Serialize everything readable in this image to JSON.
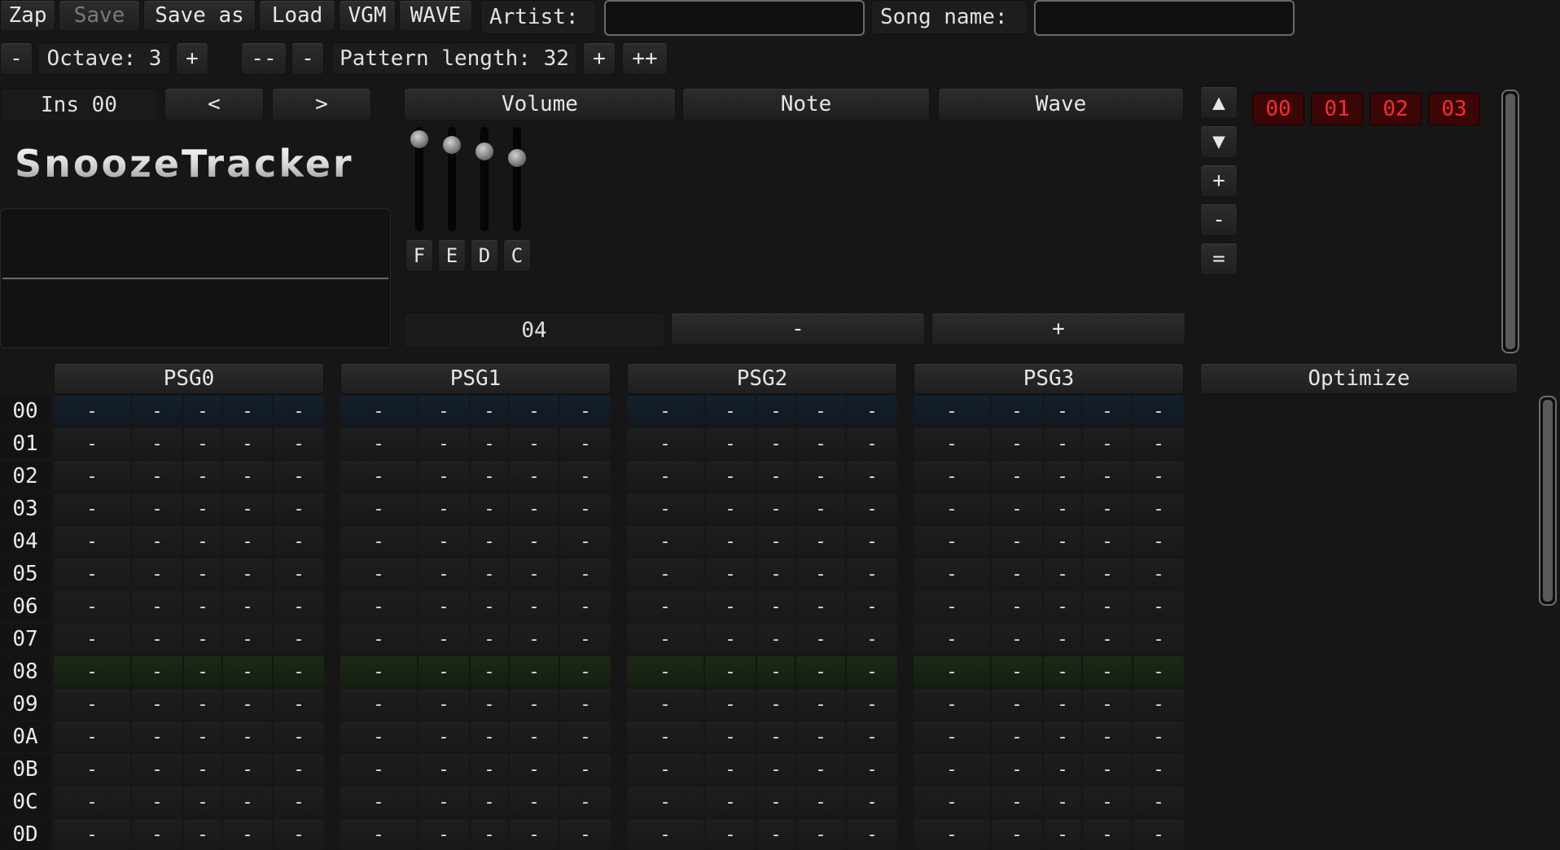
{
  "toolbar": {
    "zap": "Zap",
    "save": "Save",
    "save_as": "Save as",
    "load": "Load",
    "vgm": "VGM",
    "wave": "WAVE",
    "artist_label": "Artist:",
    "artist_value": "",
    "song_label": "Song name:",
    "song_value": ""
  },
  "row2": {
    "octave_minus": "-",
    "octave_label": "Octave: 3",
    "octave_plus": "+",
    "len_dminus": "--",
    "len_minus": "-",
    "pattern_length_label": "Pattern length: 32",
    "len_plus": "+",
    "len_dplus": "++"
  },
  "instrument": {
    "label": "Ins 00",
    "prev": "<",
    "next": ">"
  },
  "tabs": {
    "volume": "Volume",
    "note": "Note",
    "wave": "Wave"
  },
  "logo": "SnoozeTracker",
  "sliders": [
    {
      "label": "F",
      "level": 0.94
    },
    {
      "label": "E",
      "level": 0.88
    },
    {
      "label": "D",
      "level": 0.82
    },
    {
      "label": "C",
      "level": 0.76
    }
  ],
  "envelope": {
    "value": "04",
    "minus": "-",
    "plus": "+"
  },
  "order_controls": {
    "up": "▲",
    "down": "▼",
    "add": "+",
    "remove": "-",
    "dup": "="
  },
  "order_list": [
    "00",
    "01",
    "02",
    "03"
  ],
  "channels": [
    "PSG0",
    "PSG1",
    "PSG2",
    "PSG3"
  ],
  "optimize": "Optimize",
  "rows": [
    "00",
    "01",
    "02",
    "03",
    "04",
    "05",
    "06",
    "07",
    "08",
    "09",
    "0A",
    "0B",
    "0C",
    "0D"
  ],
  "empty_cell": "-",
  "colors": {
    "order_text": "#ff2b2b",
    "current_row": "#14202c",
    "highlight_row": "#1c2a16"
  }
}
